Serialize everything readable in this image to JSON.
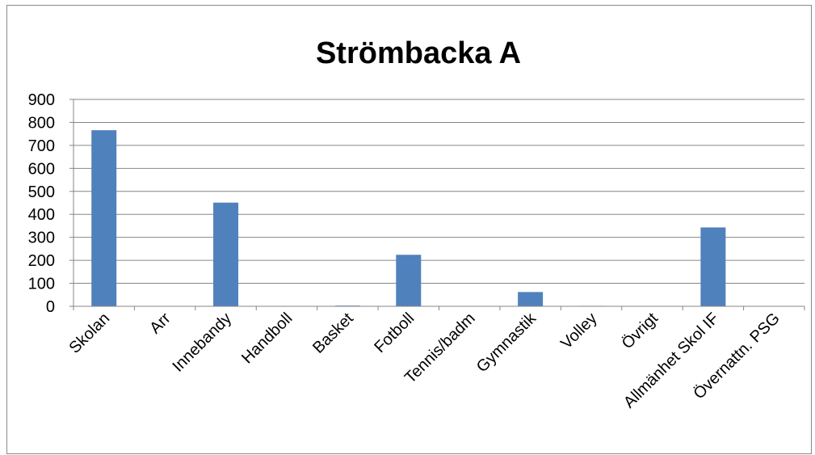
{
  "chart_data": {
    "type": "bar",
    "title": "Strömbacka A",
    "xlabel": "",
    "ylabel": "",
    "ylim": [
      0,
      900
    ],
    "yticks": [
      0,
      100,
      200,
      300,
      400,
      500,
      600,
      700,
      800,
      900
    ],
    "categories": [
      "Skolan",
      "Arr",
      "Innebandy",
      "Handboll",
      "Basket",
      "Fotboll",
      "Tennis/badm",
      "Gymnastik",
      "Volley",
      "Övrigt",
      "Allmänhet Skol IF",
      "Övernattn. PSG"
    ],
    "values": [
      766,
      0,
      451,
      0,
      3,
      224,
      0,
      62,
      2,
      0,
      343,
      0
    ],
    "bar_color": "#4F81BD",
    "grid": true,
    "legend": "none"
  }
}
